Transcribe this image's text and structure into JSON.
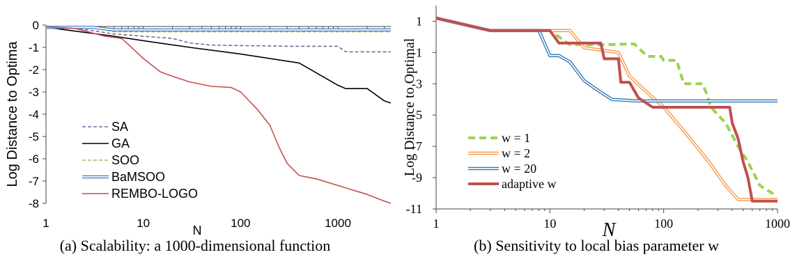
{
  "chart_data": [
    {
      "type": "line",
      "xlabel": "N",
      "ylabel": "Log Distance to Optima",
      "x_scale": "log",
      "xlim": [
        1,
        3500
      ],
      "ylim": [
        -8,
        0
      ],
      "x_ticks": [
        "1",
        "10",
        "100",
        "1000"
      ],
      "y_ticks": [
        "0",
        "-1",
        "-2",
        "-3",
        "-4",
        "-5",
        "-6",
        "-7",
        "-8"
      ],
      "legend_position": "bottom-left",
      "series": [
        {
          "name": "SA",
          "color": "#8064a2",
          "style": "dashed",
          "points": [
            [
              1,
              -0.1
            ],
            [
              2,
              -0.15
            ],
            [
              3,
              -0.25
            ],
            [
              5,
              -0.4
            ],
            [
              10,
              -0.5
            ],
            [
              20,
              -0.6
            ],
            [
              30,
              -0.8
            ],
            [
              50,
              -0.9
            ],
            [
              100,
              -0.92
            ],
            [
              300,
              -0.95
            ],
            [
              1000,
              -0.95
            ],
            [
              1200,
              -1.2
            ],
            [
              3500,
              -1.2
            ]
          ]
        },
        {
          "name": "GA",
          "color": "#000000",
          "style": "solid",
          "points": [
            [
              1,
              -0.1
            ],
            [
              5,
              -0.5
            ],
            [
              10,
              -0.7
            ],
            [
              30,
              -1.0
            ],
            [
              100,
              -1.3
            ],
            [
              400,
              -1.7
            ],
            [
              1000,
              -2.7
            ],
            [
              1200,
              -2.85
            ],
            [
              2000,
              -2.85
            ],
            [
              3000,
              -3.4
            ],
            [
              3500,
              -3.5
            ]
          ]
        },
        {
          "name": "SOO",
          "color": "#9bbb59",
          "style": "dashed",
          "points": [
            [
              1,
              -0.1
            ],
            [
              3,
              -0.1
            ],
            [
              5,
              -0.3
            ],
            [
              3500,
              -0.3
            ]
          ]
        },
        {
          "name": "BaMSOO",
          "color": "#4f81bd",
          "style": "double",
          "points": [
            [
              1,
              -0.1
            ],
            [
              3,
              -0.1
            ],
            [
              5,
              -0.22
            ],
            [
              3500,
              -0.22
            ]
          ]
        },
        {
          "name": "REMBO-LOGO",
          "color": "#c0504d",
          "style": "solid",
          "points": [
            [
              1,
              -0.08
            ],
            [
              2,
              -0.15
            ],
            [
              4,
              -0.5
            ],
            [
              6,
              -0.6
            ],
            [
              8,
              -1.1
            ],
            [
              10,
              -1.5
            ],
            [
              15,
              -2.1
            ],
            [
              20,
              -2.3
            ],
            [
              30,
              -2.55
            ],
            [
              50,
              -2.75
            ],
            [
              80,
              -2.8
            ],
            [
              100,
              -3.0
            ],
            [
              150,
              -3.8
            ],
            [
              200,
              -4.5
            ],
            [
              250,
              -5.5
            ],
            [
              300,
              -6.2
            ],
            [
              400,
              -6.75
            ],
            [
              600,
              -6.9
            ],
            [
              1000,
              -7.2
            ],
            [
              2000,
              -7.6
            ],
            [
              3000,
              -7.9
            ],
            [
              3500,
              -8.0
            ]
          ]
        }
      ]
    },
    {
      "type": "line",
      "xlabel": "N",
      "ylabel": "Log Distance to Optimal",
      "x_scale": "log",
      "xlim": [
        1,
        1000
      ],
      "ylim": [
        -11,
        2
      ],
      "x_ticks": [
        "1",
        "10",
        "100",
        "1000"
      ],
      "y_ticks": [
        "1",
        "-1",
        "-3",
        "-5",
        "-7",
        "-9",
        "-11"
      ],
      "legend_position": "bottom-left",
      "series": [
        {
          "name": "w = 1",
          "color": "#9bd34f",
          "style": "dashed",
          "points": [
            [
              1,
              1.2
            ],
            [
              3,
              0.4
            ],
            [
              10,
              0.4
            ],
            [
              15,
              -0.5
            ],
            [
              30,
              -0.5
            ],
            [
              55,
              -0.45
            ],
            [
              72,
              -1.25
            ],
            [
              95,
              -1.25
            ],
            [
              100,
              -1.5
            ],
            [
              130,
              -1.5
            ],
            [
              150,
              -3.0
            ],
            [
              220,
              -3.0
            ],
            [
              240,
              -3.7
            ],
            [
              260,
              -4.5
            ],
            [
              350,
              -5.5
            ],
            [
              450,
              -7.0
            ],
            [
              550,
              -8.0
            ],
            [
              700,
              -9.5
            ],
            [
              900,
              -10.0
            ],
            [
              950,
              -10.5
            ],
            [
              1000,
              -10.5
            ]
          ]
        },
        {
          "name": "w = 2",
          "color": "#f79646",
          "style": "double",
          "points": [
            [
              1,
              1.2
            ],
            [
              3,
              0.4
            ],
            [
              15,
              0.4
            ],
            [
              20,
              -0.7
            ],
            [
              40,
              -1.0
            ],
            [
              50,
              -2.5
            ],
            [
              70,
              -3.5
            ],
            [
              100,
              -4.5
            ],
            [
              150,
              -6.0
            ],
            [
              250,
              -8.0
            ],
            [
              350,
              -9.5
            ],
            [
              450,
              -10.4
            ],
            [
              600,
              -10.4
            ],
            [
              1000,
              -10.4
            ]
          ]
        },
        {
          "name": "w = 20",
          "color": "#2e75b6",
          "style": "double",
          "points": [
            [
              1,
              1.2
            ],
            [
              3,
              0.4
            ],
            [
              8,
              0.4
            ],
            [
              10,
              -1.2
            ],
            [
              12,
              -1.2
            ],
            [
              15,
              -1.6
            ],
            [
              20,
              -2.8
            ],
            [
              25,
              -3.3
            ],
            [
              35,
              -4.0
            ],
            [
              60,
              -4.1
            ],
            [
              1000,
              -4.1
            ]
          ]
        },
        {
          "name": "adaptive w",
          "color": "#c0504d",
          "style": "thick",
          "points": [
            [
              1,
              1.2
            ],
            [
              3,
              0.4
            ],
            [
              10,
              0.4
            ],
            [
              12,
              -0.4
            ],
            [
              28,
              -0.4
            ],
            [
              30,
              -1.4
            ],
            [
              40,
              -1.4
            ],
            [
              42,
              -2.9
            ],
            [
              50,
              -2.9
            ],
            [
              60,
              -3.9
            ],
            [
              80,
              -4.5
            ],
            [
              200,
              -4.5
            ],
            [
              380,
              -4.5
            ],
            [
              400,
              -5.5
            ],
            [
              450,
              -6.5
            ],
            [
              500,
              -8.0
            ],
            [
              550,
              -9.0
            ],
            [
              600,
              -10.5
            ],
            [
              1000,
              -10.5
            ]
          ]
        }
      ]
    }
  ],
  "captions": {
    "a": "(a) Scalability: a 1000-dimensional function",
    "b": "(b) Sensitivity to local bias parameter w"
  }
}
